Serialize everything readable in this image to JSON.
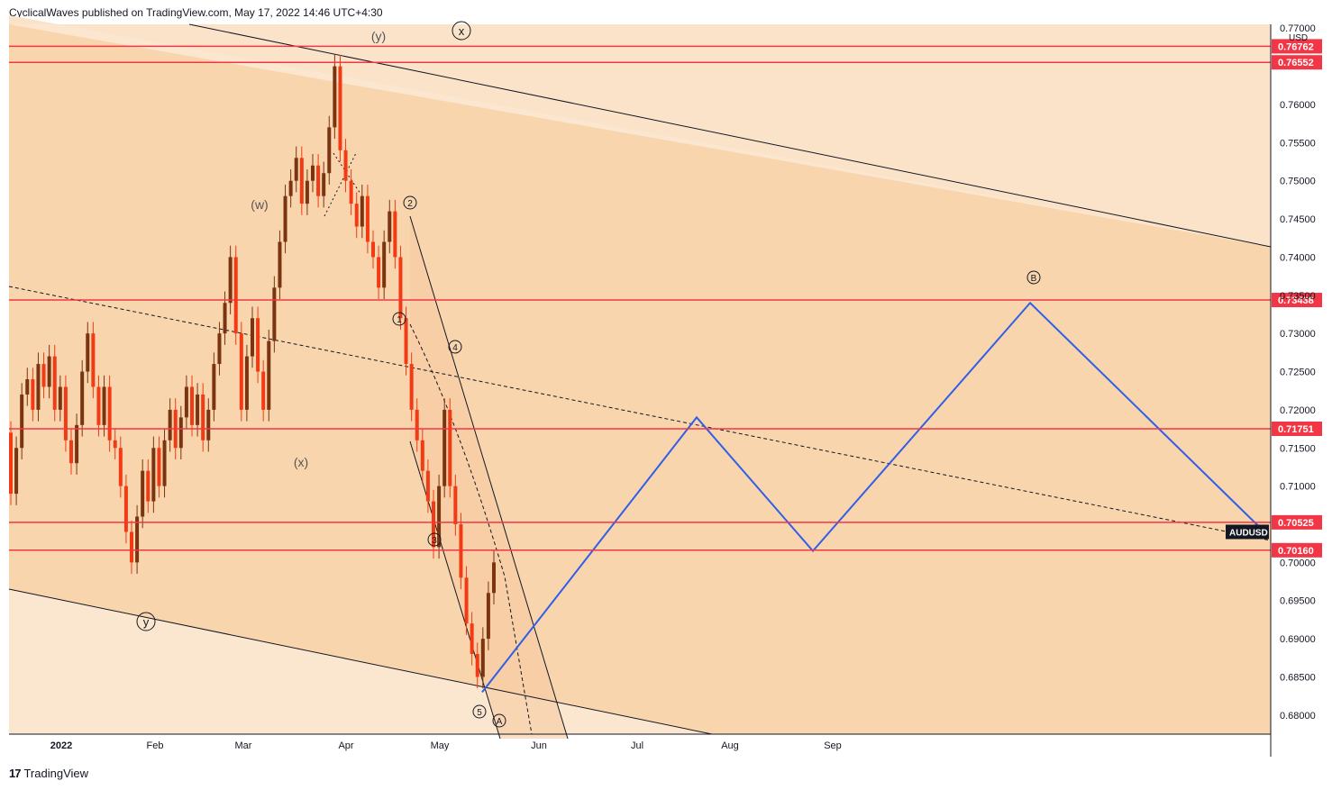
{
  "header": {
    "attribution": "CyclicalWaves published on TradingView.com, May 17, 2022 14:46 UTC+4:30"
  },
  "footer": {
    "brand": "TradingView",
    "logo": "17"
  },
  "chart_data": {
    "type": "line",
    "symbol": "AUDUSD",
    "currency": "USD",
    "last_price_label": "AUDUSD",
    "x_ticks": [
      "2022",
      "Feb",
      "Mar",
      "Apr",
      "May",
      "Jun",
      "Jul",
      "Aug",
      "Sep"
    ],
    "y_ticks": [
      "0.77000",
      "0.76000",
      "0.75500",
      "0.75000",
      "0.74500",
      "0.74000",
      "0.73500",
      "0.73000",
      "0.72500",
      "0.72000",
      "0.71500",
      "0.71000",
      "0.70000",
      "0.69500",
      "0.69000",
      "0.68500",
      "0.68000"
    ],
    "ylim": [
      0.6775,
      0.7705
    ],
    "horizontal_levels": [
      {
        "value": 0.76762,
        "label": "0.76762"
      },
      {
        "value": 0.76552,
        "label": "0.76552"
      },
      {
        "value": 0.73438,
        "label": "0.73438"
      },
      {
        "value": 0.71751,
        "label": "0.71751"
      },
      {
        "value": 0.70525,
        "label": "0.70525"
      },
      {
        "value": 0.7016,
        "label": "0.70160"
      }
    ],
    "wave_labels": [
      "(y)",
      "x",
      "(w)",
      "(x)",
      "y",
      "1",
      "2",
      "3",
      "4",
      "5",
      "A",
      "B"
    ],
    "projection": [
      {
        "date": "2022-05-13",
        "value": 0.683
      },
      {
        "date": "2022-07-23",
        "value": 0.719
      },
      {
        "date": "2022-08-25",
        "value": 0.7015
      },
      {
        "date": "2022-10-20",
        "value": 0.734
      },
      {
        "date": "2022-11-30",
        "value": 0.704
      }
    ],
    "series": [
      {
        "values": [
          [
            0.717,
            0.709
          ],
          [
            0.709,
            0.715
          ],
          [
            0.715,
            0.722
          ],
          [
            0.722,
            0.724
          ],
          [
            0.724,
            0.72
          ],
          [
            0.72,
            0.726
          ],
          [
            0.726,
            0.723
          ],
          [
            0.723,
            0.727
          ],
          [
            0.727,
            0.72
          ],
          [
            0.72,
            0.723
          ],
          [
            0.723,
            0.716
          ],
          [
            0.716,
            0.713
          ],
          [
            0.713,
            0.718
          ],
          [
            0.718,
            0.725
          ],
          [
            0.725,
            0.73
          ],
          [
            0.73,
            0.723
          ],
          [
            0.723,
            0.718
          ],
          [
            0.718,
            0.723
          ],
          [
            0.723,
            0.716
          ],
          [
            0.716,
            0.715
          ],
          [
            0.715,
            0.71
          ],
          [
            0.71,
            0.704
          ],
          [
            0.704,
            0.7
          ],
          [
            0.7,
            0.706
          ],
          [
            0.706,
            0.712
          ],
          [
            0.712,
            0.708
          ],
          [
            0.708,
            0.715
          ],
          [
            0.715,
            0.71
          ],
          [
            0.71,
            0.716
          ],
          [
            0.716,
            0.72
          ],
          [
            0.72,
            0.715
          ],
          [
            0.715,
            0.719
          ],
          [
            0.719,
            0.723
          ],
          [
            0.723,
            0.718
          ],
          [
            0.718,
            0.722
          ],
          [
            0.722,
            0.716
          ],
          [
            0.716,
            0.72
          ],
          [
            0.72,
            0.726
          ],
          [
            0.726,
            0.73
          ],
          [
            0.73,
            0.734
          ],
          [
            0.734,
            0.74
          ],
          [
            0.74,
            0.73
          ],
          [
            0.73,
            0.72
          ],
          [
            0.72,
            0.727
          ],
          [
            0.727,
            0.732
          ],
          [
            0.732,
            0.725
          ],
          [
            0.725,
            0.72
          ],
          [
            0.72,
            0.729
          ],
          [
            0.729,
            0.736
          ],
          [
            0.736,
            0.742
          ],
          [
            0.742,
            0.748
          ],
          [
            0.748,
            0.75
          ],
          [
            0.75,
            0.753
          ],
          [
            0.753,
            0.747
          ],
          [
            0.747,
            0.75
          ],
          [
            0.75,
            0.752
          ],
          [
            0.752,
            0.748
          ],
          [
            0.748,
            0.751
          ],
          [
            0.751,
            0.757
          ],
          [
            0.757,
            0.765
          ],
          [
            0.765,
            0.754
          ],
          [
            0.754,
            0.75
          ],
          [
            0.75,
            0.747
          ],
          [
            0.747,
            0.744
          ],
          [
            0.744,
            0.748
          ],
          [
            0.748,
            0.742
          ],
          [
            0.742,
            0.74
          ],
          [
            0.74,
            0.736
          ],
          [
            0.736,
            0.742
          ],
          [
            0.742,
            0.746
          ],
          [
            0.746,
            0.74
          ],
          [
            0.74,
            0.732
          ],
          [
            0.732,
            0.726
          ],
          [
            0.726,
            0.72
          ],
          [
            0.72,
            0.716
          ],
          [
            0.716,
            0.712
          ],
          [
            0.712,
            0.708
          ],
          [
            0.708,
            0.702
          ],
          [
            0.702,
            0.71
          ],
          [
            0.71,
            0.72
          ],
          [
            0.72,
            0.71
          ],
          [
            0.71,
            0.705
          ],
          [
            0.705,
            0.698
          ],
          [
            0.698,
            0.692
          ],
          [
            0.692,
            0.688
          ],
          [
            0.688,
            0.685
          ],
          [
            0.685,
            0.69
          ],
          [
            0.69,
            0.696
          ],
          [
            0.696,
            0.7
          ]
        ]
      }
    ]
  }
}
